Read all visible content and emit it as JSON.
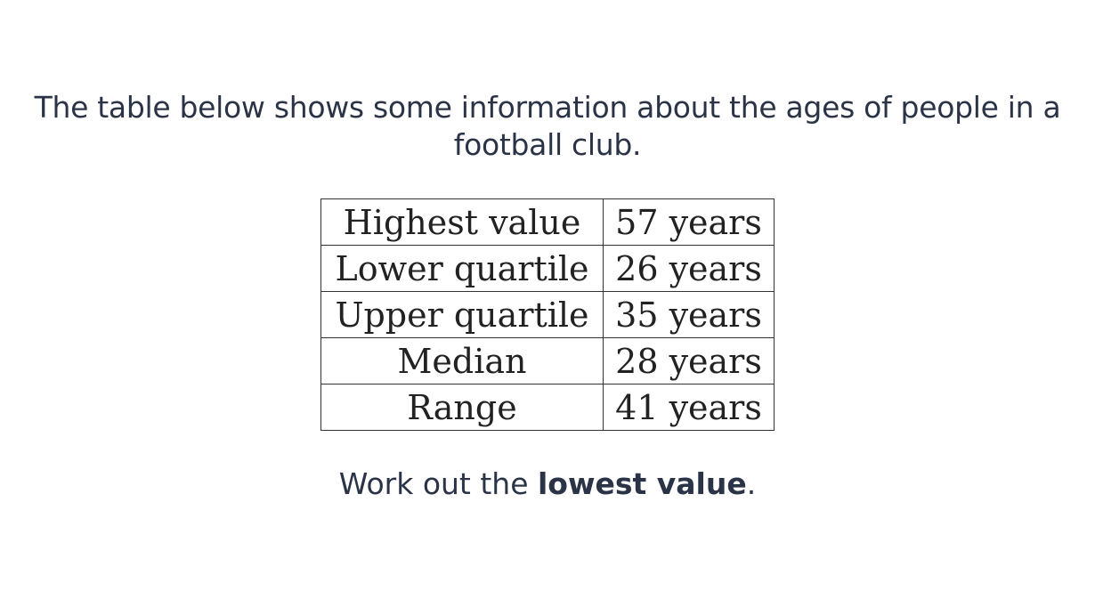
{
  "intro": {
    "line1": "The table below shows some information about the ages of people in a",
    "line2": "football club."
  },
  "table": {
    "rows": [
      {
        "label": "Highest value",
        "value": "57 years"
      },
      {
        "label": "Lower quartile",
        "value": "26 years"
      },
      {
        "label": "Upper quartile",
        "value": "35 years"
      },
      {
        "label": "Median",
        "value": "28 years"
      },
      {
        "label": "Range",
        "value": "41 years"
      }
    ]
  },
  "task": {
    "prefix": "Work out the ",
    "emphasis": "lowest value",
    "suffix": "."
  }
}
